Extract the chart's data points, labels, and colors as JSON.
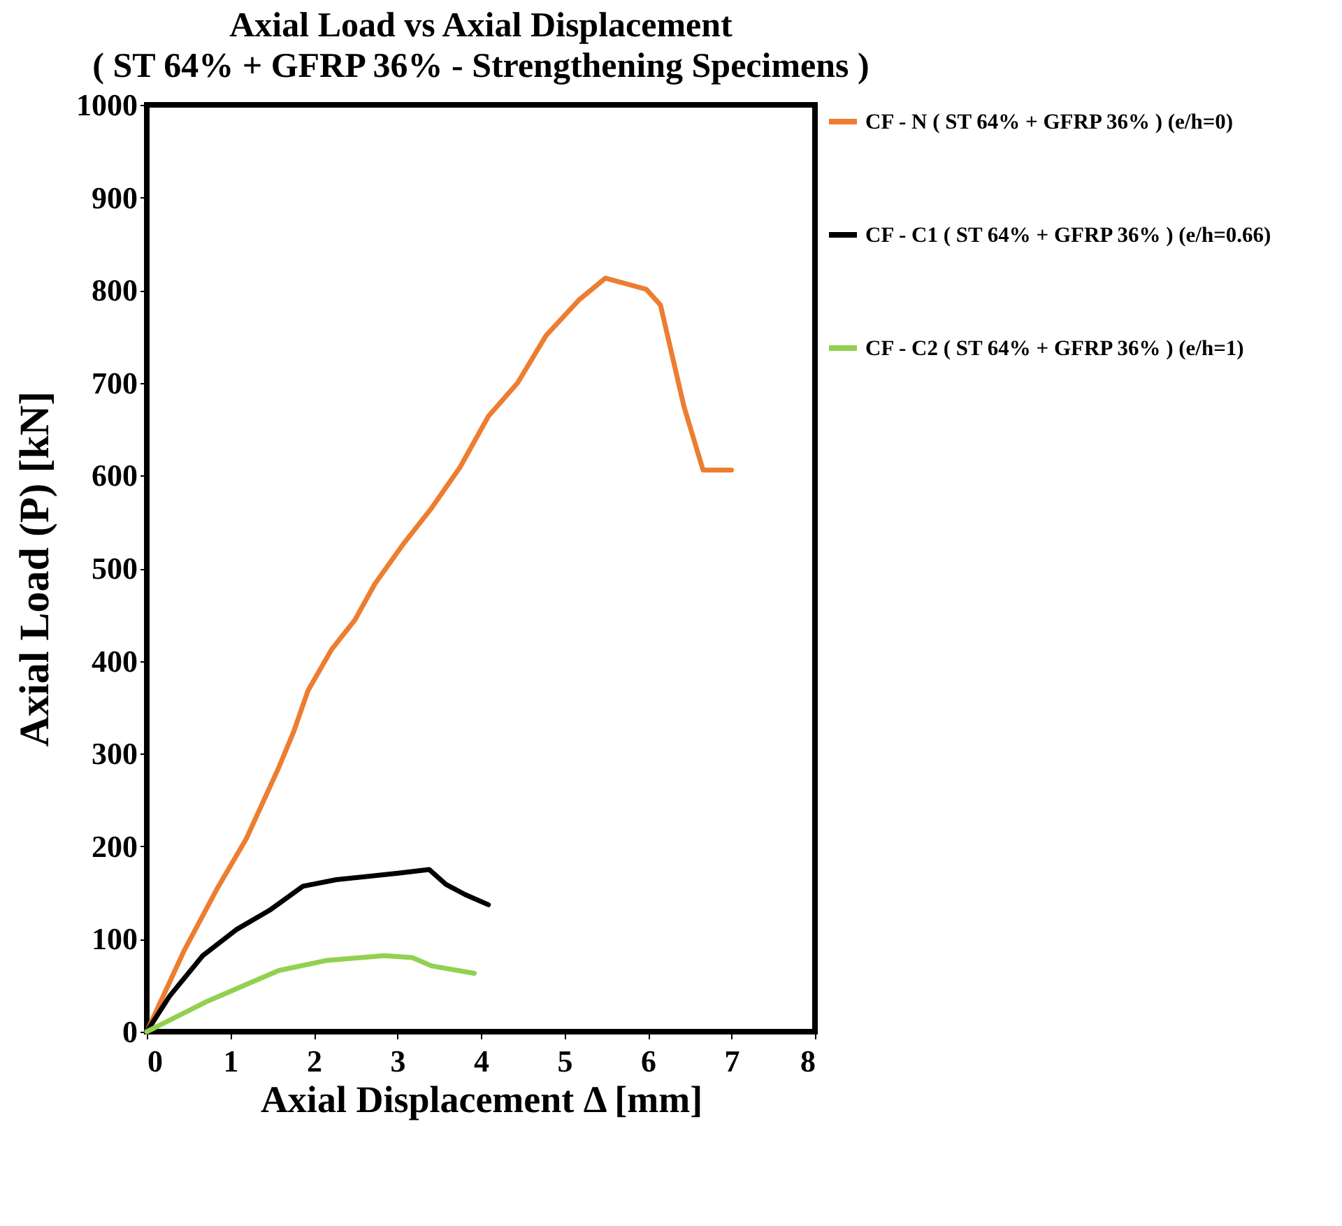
{
  "chart_data": {
    "type": "line",
    "title": "Axial Load vs Axial Displacement",
    "subtitle": "( ST 64% + GFRP 36% - Strengthening Specimens )",
    "xlabel": "Axial Displacement Δ  [mm]",
    "ylabel": "Axial  Load  (P)  [kN]",
    "xlim": [
      0,
      8
    ],
    "xticks": [
      0,
      1,
      2,
      3,
      4,
      5,
      6,
      7,
      8
    ],
    "ylim": [
      0,
      1000
    ],
    "yticks": [
      0,
      100,
      200,
      300,
      400,
      500,
      600,
      700,
      800,
      900,
      1000
    ],
    "grid": false,
    "legend": "right",
    "marker": "none",
    "line_style": "solid",
    "series": [
      {
        "name": "CF - N ( ST 64% + GFRP 36% ) (e/h=0)",
        "color": "#ed7d31",
        "x": [
          0,
          0.45,
          0.84,
          1.19,
          1.58,
          1.76,
          1.93,
          2.21,
          2.49,
          2.73,
          3.07,
          3.41,
          3.75,
          4.09,
          4.44,
          4.78,
          5.18,
          5.49,
          5.98,
          6.15,
          6.43,
          6.66,
          7.0
        ],
        "values": [
          0,
          88,
          154,
          208,
          285,
          324,
          368,
          412,
          444,
          483,
          526,
          565,
          609,
          664,
          700,
          751,
          790,
          813,
          801,
          784,
          675,
          606,
          606
        ]
      },
      {
        "name": "CF - C1 ( ST 64% + GFRP 36% ) (e/h=0.66)",
        "color": "#000000",
        "x": [
          0,
          0.27,
          0.67,
          1.07,
          1.47,
          1.87,
          2.27,
          3.01,
          3.38,
          3.58,
          3.81,
          4.09
        ],
        "values": [
          0,
          38,
          82,
          110,
          131,
          157,
          164,
          171,
          175,
          159,
          148,
          137
        ]
      },
      {
        "name": "CF - C2 ( ST 64% + GFRP 36% ) (e/h=1)",
        "color": "#92d050",
        "x": [
          0,
          0.73,
          1.58,
          2.16,
          2.84,
          3.18,
          3.41,
          3.92
        ],
        "values": [
          0,
          33,
          66,
          77,
          82,
          80,
          71,
          63
        ]
      }
    ]
  }
}
